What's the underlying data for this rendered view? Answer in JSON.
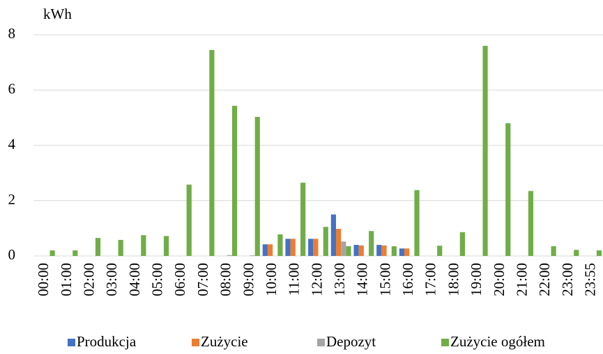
{
  "chart_data": {
    "type": "bar",
    "y_label": "kWh",
    "categories": [
      "00:00",
      "01:00",
      "02:00",
      "03:00",
      "04:00",
      "05:00",
      "06:00",
      "07:00",
      "08:00",
      "09:00",
      "10:00",
      "11:00",
      "12:00",
      "13:00",
      "14:00",
      "15:00",
      "16:00",
      "17:00",
      "18:00",
      "19:00",
      "20:00",
      "21:00",
      "22:00",
      "23:00",
      "23:55"
    ],
    "series": [
      {
        "name": "Produkcja",
        "color": "#4472c4",
        "values": [
          0,
          0,
          0,
          0,
          0,
          0,
          0,
          0,
          0,
          0,
          0.42,
          0.62,
          0.62,
          1.5,
          0.4,
          0.4,
          0.27,
          0,
          0,
          0,
          0,
          0,
          0,
          0,
          0
        ]
      },
      {
        "name": "Zużycie",
        "color": "#ed7d31",
        "values": [
          0,
          0,
          0,
          0,
          0,
          0,
          0,
          0,
          0,
          0,
          0.42,
          0.62,
          0.62,
          0.98,
          0.38,
          0.38,
          0.27,
          0,
          0,
          0,
          0,
          0,
          0,
          0,
          0
        ]
      },
      {
        "name": "Depozyt",
        "color": "#a5a5a5",
        "values": [
          0,
          0,
          0,
          0,
          0,
          0,
          0,
          0,
          0.03,
          0.02,
          0,
          0,
          0,
          0.52,
          0,
          0,
          0,
          0,
          0,
          0,
          0,
          0,
          0,
          0,
          0
        ]
      },
      {
        "name": "Zużycie ogółem",
        "color": "#70ad47",
        "values": [
          0.2,
          0.2,
          0.65,
          0.58,
          0.75,
          0.72,
          2.58,
          7.45,
          5.43,
          5.03,
          0.78,
          2.65,
          1.05,
          0.35,
          0.9,
          0.35,
          2.38,
          0.37,
          0.86,
          7.6,
          4.8,
          2.35,
          0.35,
          0.22,
          0.2
        ]
      }
    ],
    "ylim": [
      0,
      8
    ],
    "yticks": [
      0,
      2,
      4,
      6,
      8
    ],
    "grid": true,
    "legend": "bottom"
  }
}
